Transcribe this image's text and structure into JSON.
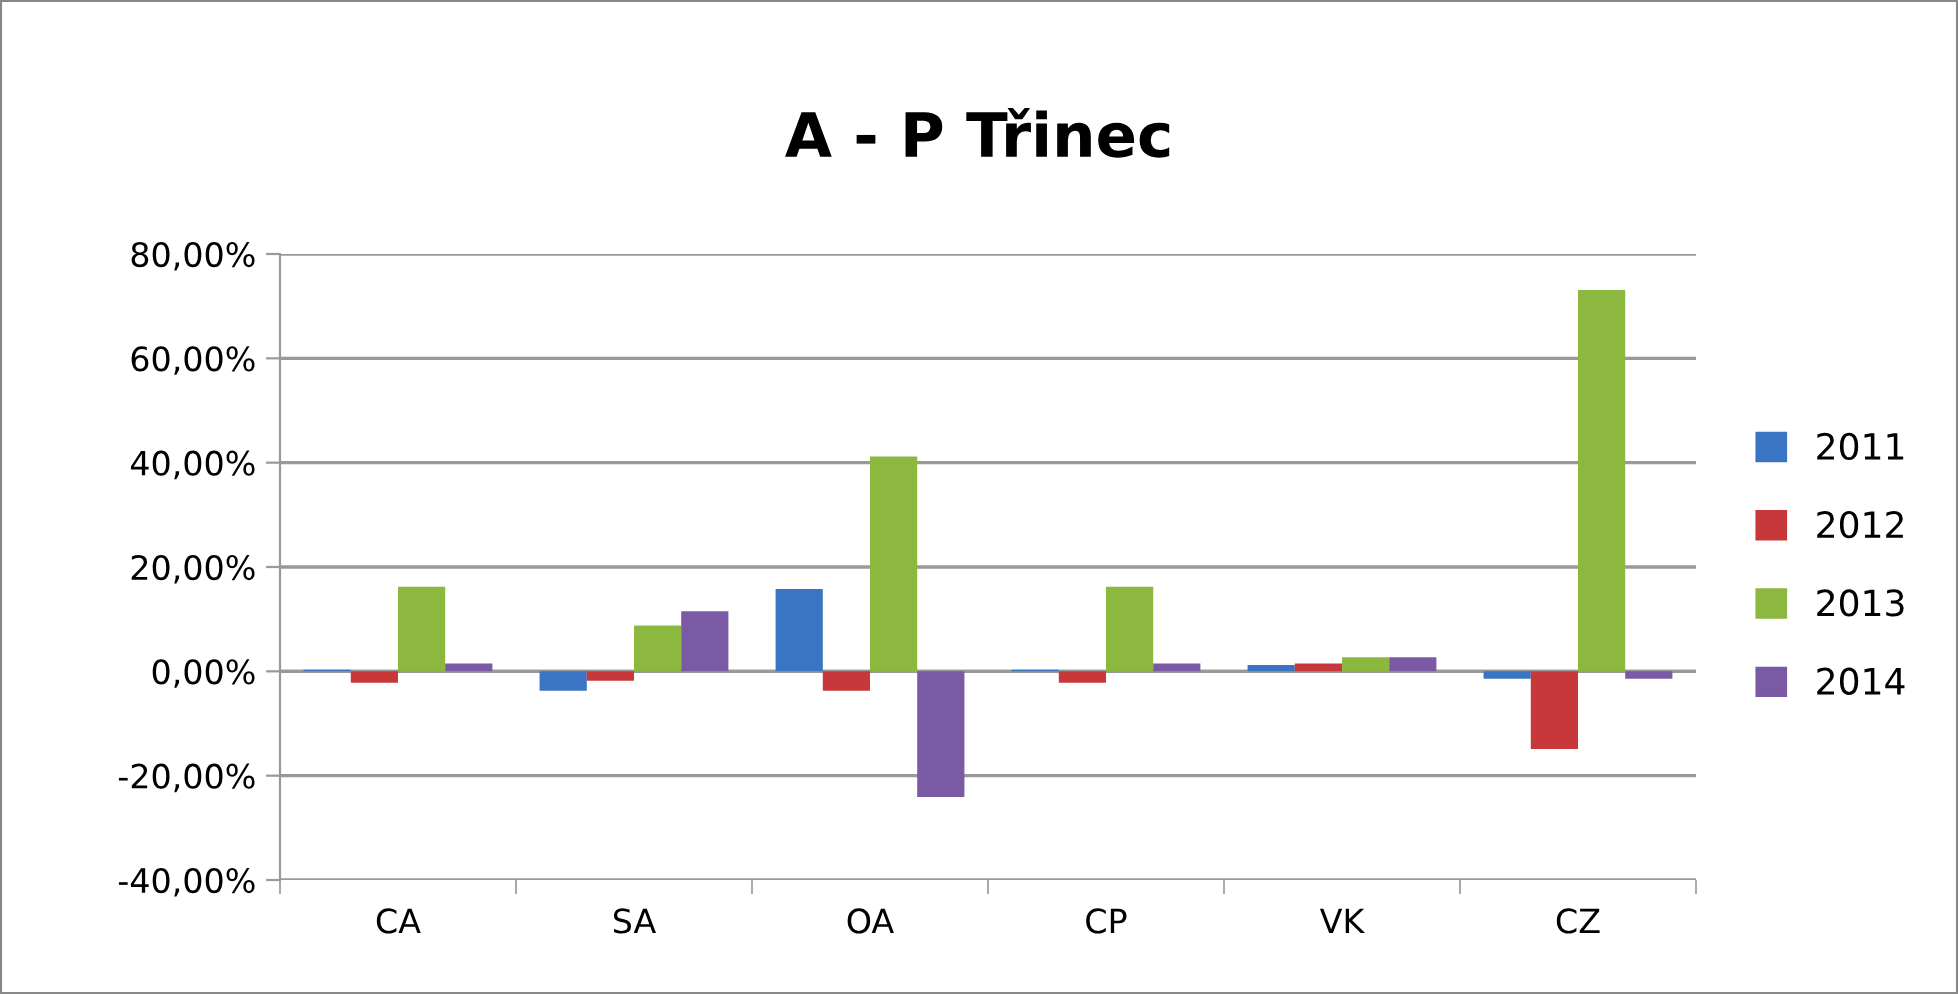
{
  "chart_data": {
    "type": "bar",
    "title": "A - P Třinec",
    "categories": [
      "CA",
      "SA",
      "OA",
      "CP",
      "VK",
      "CZ"
    ],
    "series": [
      {
        "name": "2011",
        "color": "#3a75c4",
        "values": [
          0.3,
          -3.7,
          15.8,
          0.3,
          1.2,
          -1.4
        ]
      },
      {
        "name": "2012",
        "color": "#c8383a",
        "values": [
          -2.2,
          -1.8,
          -3.7,
          -2.2,
          1.5,
          -14.9
        ]
      },
      {
        "name": "2013",
        "color": "#8db83f",
        "values": [
          16.2,
          8.8,
          41.2,
          16.2,
          2.7,
          73.1
        ]
      },
      {
        "name": "2014",
        "color": "#7a59a5",
        "values": [
          1.5,
          11.5,
          -24.1,
          1.5,
          2.7,
          -1.4
        ]
      }
    ],
    "ylim": [
      -40,
      80
    ],
    "yticks": [
      {
        "value": -40,
        "label": "-40,00%"
      },
      {
        "value": -20,
        "label": "-20,00%"
      },
      {
        "value": 0,
        "label": "0,00%"
      },
      {
        "value": 20,
        "label": "20,00%"
      },
      {
        "value": 40,
        "label": "40,00%"
      },
      {
        "value": 60,
        "label": "60,00%"
      },
      {
        "value": 80,
        "label": "80,00%"
      }
    ],
    "grid": "y",
    "legend": "right"
  }
}
